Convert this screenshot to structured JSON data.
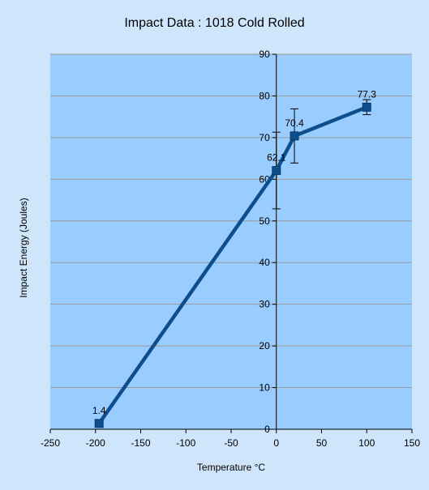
{
  "chart_data": {
    "type": "line",
    "title": "Impact Data : 1018 Cold Rolled",
    "xlabel": "Temperature °C",
    "ylabel": "Impact Energy (Joules)",
    "xlim": [
      -250,
      150
    ],
    "ylim": [
      0,
      90
    ],
    "xticks": [
      -250,
      -200,
      -150,
      -100,
      -50,
      0,
      50,
      100,
      150
    ],
    "yticks": [
      0,
      10,
      20,
      30,
      40,
      50,
      60,
      70,
      80,
      90
    ],
    "grid": "horizontal",
    "legend": "none",
    "series": [
      {
        "x": [
          -196,
          0,
          20,
          100
        ],
        "y": [
          1.4,
          62.1,
          70.4,
          77.3
        ],
        "labels": [
          "1.4",
          "62.1",
          "70.4",
          "77.3"
        ],
        "error": [
          0.5,
          9.2,
          6.5,
          1.8
        ],
        "color": "#0d4e8c"
      }
    ],
    "plot_background": "#99ccff",
    "page_background": "#cfe5fb"
  }
}
